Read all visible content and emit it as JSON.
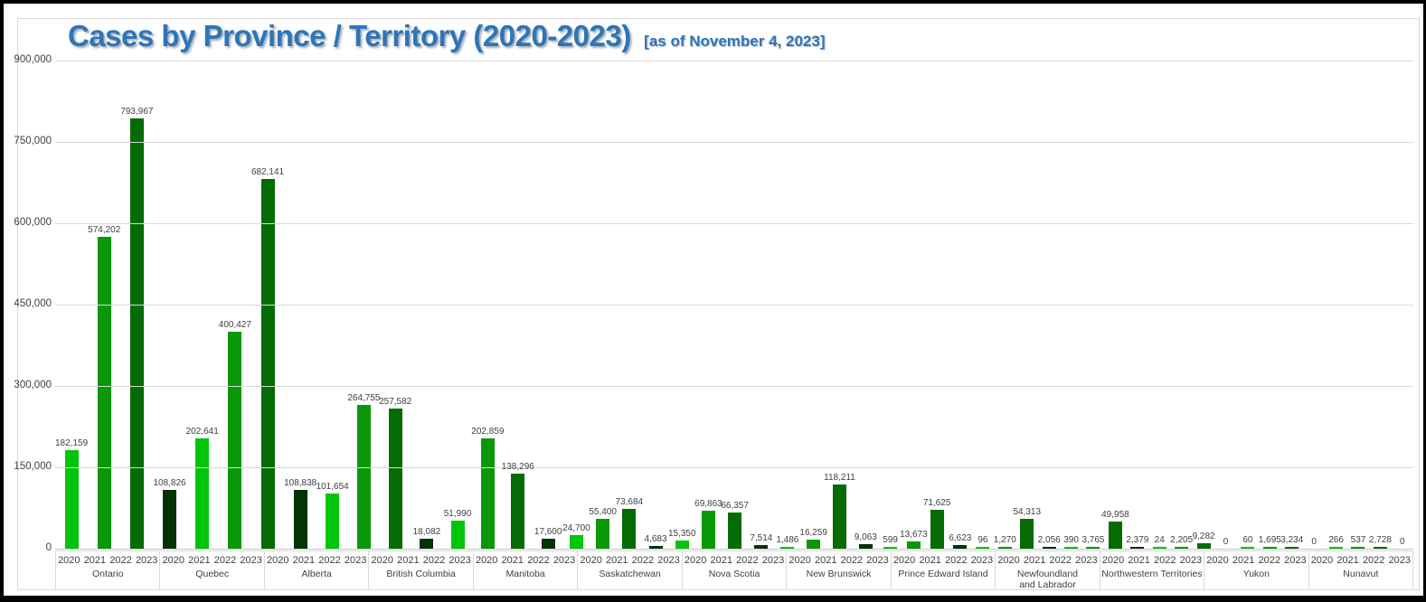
{
  "title": {
    "main": "Cases by Province / Territory (2020-2023)",
    "suffix": "[as of November 4, 2023]"
  },
  "chart_data": {
    "type": "bar",
    "title": "Cases by Province / Territory (2020-2023)",
    "subtitle": "[as of November 4, 2023]",
    "categories": [
      "Ontario",
      "Quebec",
      "Alberta",
      "British Columbia",
      "Manitoba",
      "Saskatchewan",
      "Nova Scotia",
      "New Brunswick",
      "Prince Edward Island",
      "Newfoundland and Labrador",
      "Northwestern Territories",
      "Yukon",
      "Nunavut"
    ],
    "series": [
      {
        "name": "2020",
        "color": "#00c50a",
        "values": [
          182159,
          202641,
          101654,
          51990,
          24700,
          15350,
          1486,
          599,
          96,
          390,
          24,
          60,
          266
        ]
      },
      {
        "name": "2021",
        "color": "#0a9708",
        "values": [
          574202,
          400427,
          264755,
          202859,
          55400,
          69863,
          16259,
          13673,
          1270,
          3765,
          2205,
          1695,
          537
        ]
      },
      {
        "name": "2022",
        "color": "#056b05",
        "values": [
          793967,
          682141,
          257582,
          138296,
          73684,
          66357,
          118211,
          71625,
          54313,
          49958,
          9282,
          3234,
          2728
        ]
      },
      {
        "name": "2023",
        "color": "#063306",
        "values": [
          108826,
          108838,
          18082,
          17600,
          4683,
          7514,
          9063,
          6623,
          2056,
          2379,
          0,
          0,
          0
        ]
      }
    ],
    "ylim": [
      0,
      900000
    ],
    "ytick_interval": 150000,
    "yticks": [
      "900,000",
      "750,000",
      "600,000",
      "450,000",
      "300,000",
      "150,000",
      "0"
    ],
    "xlabel": "",
    "ylabel": "",
    "grid": true,
    "legend": "none",
    "data_labels": true
  }
}
